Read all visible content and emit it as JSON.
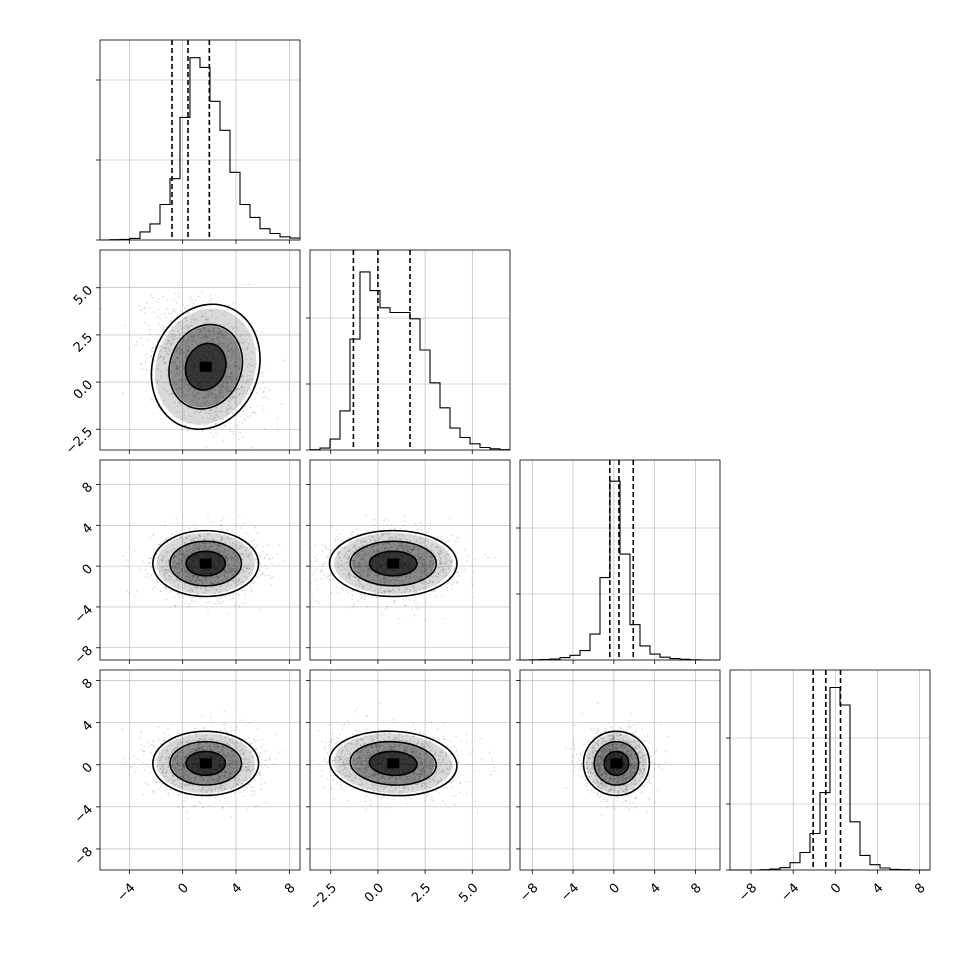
{
  "chart_data": {
    "type": "corner",
    "params": [
      {
        "ticks": [
          -4,
          0,
          4,
          8
        ],
        "tick_labels": [
          "−4",
          "0",
          "4",
          "8"
        ],
        "range": [
          -6.2,
          8.8
        ],
        "quantiles": [
          -0.8,
          0.4,
          2.0
        ]
      },
      {
        "ticks": [
          -2.5,
          0,
          2.5,
          5
        ],
        "tick_labels": [
          "−2.5",
          "0.0",
          "2.5",
          "5.0"
        ],
        "range": [
          -3.6,
          7.0
        ],
        "quantiles": [
          -1.3,
          0.0,
          1.7
        ]
      },
      {
        "ticks": [
          -8,
          -4,
          0,
          4,
          8
        ],
        "tick_labels": [
          "−8",
          "−4",
          "0",
          "4",
          "8"
        ],
        "range": [
          -9.2,
          10.4
        ],
        "quantiles": [
          -0.4,
          0.5,
          1.9
        ]
      },
      {
        "ticks": [
          -8,
          -4,
          0,
          4,
          8
        ],
        "tick_labels": [
          "−8",
          "−4",
          "0",
          "4",
          "8"
        ],
        "range": [
          -10.0,
          9.0
        ],
        "quantiles": [
          -2.1,
          -0.9,
          0.5
        ]
      }
    ],
    "histograms": [
      {
        "bin_start": -6.2,
        "bin_width": 0.75,
        "counts": [
          0,
          1,
          2,
          5,
          25,
          50,
          110,
          190,
          380,
          565,
          535,
          430,
          340,
          210,
          110,
          70,
          35,
          20,
          10,
          6
        ]
      },
      {
        "bin_start": -3.6,
        "bin_width": 0.53,
        "counts": [
          1,
          6,
          35,
          125,
          355,
          570,
          510,
          455,
          440,
          440,
          420,
          320,
          215,
          135,
          70,
          40,
          20,
          8,
          4,
          1
        ]
      },
      {
        "bin_start": -9.2,
        "bin_width": 0.98,
        "counts": [
          0,
          1,
          2,
          4,
          10,
          20,
          40,
          110,
          350,
          760,
          450,
          150,
          60,
          25,
          12,
          6,
          3,
          1,
          0,
          0
        ]
      },
      {
        "bin_start": -10.0,
        "bin_width": 0.95,
        "counts": [
          0,
          0,
          0,
          1,
          3,
          8,
          25,
          60,
          125,
          265,
          625,
          565,
          165,
          50,
          18,
          7,
          2,
          1,
          0,
          0
        ]
      }
    ],
    "hist_ymax": [
      620,
      640,
      850,
      685
    ],
    "hist_ytick_frac": [
      [
        0.0,
        0.4,
        0.8
      ],
      [
        0.0,
        0.33,
        0.66
      ],
      [
        0.0,
        0.33,
        0.66
      ],
      [
        0.0,
        0.33,
        0.66
      ]
    ],
    "correlations": {
      "1-0": -0.35,
      "2-0": 0.0,
      "2-1": 0.0,
      "3-0": 0.0,
      "3-1": -0.12,
      "3-2": 0.0
    },
    "grid": true
  }
}
